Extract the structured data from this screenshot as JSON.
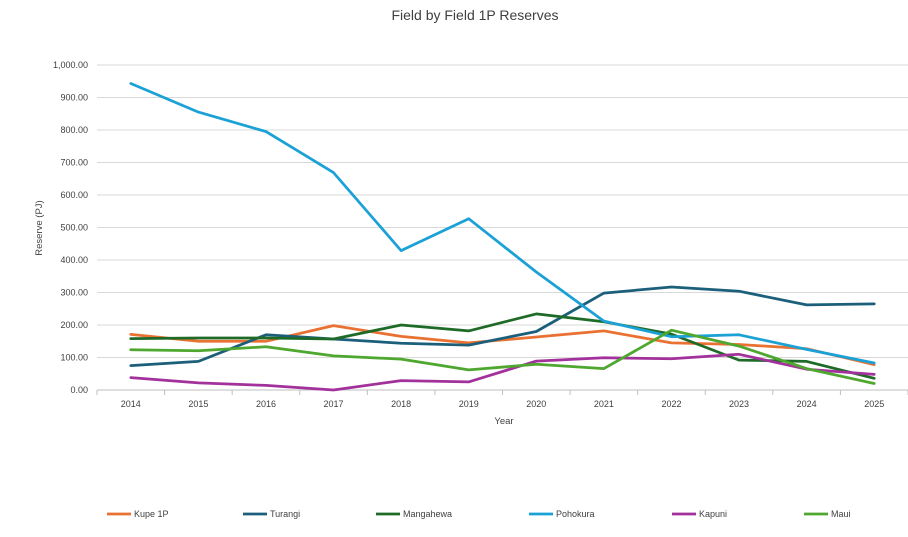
{
  "chart_data": {
    "type": "line",
    "title": "Field by Field 1P Reserves",
    "xlabel": "Year",
    "ylabel": "Reserve  (PJ)",
    "ylim": [
      0,
      1000
    ],
    "grid": true,
    "legend_position": "bottom",
    "y_ticks": [
      0,
      100,
      200,
      300,
      400,
      500,
      600,
      700,
      800,
      900,
      1000
    ],
    "y_tick_labels": [
      "0.00",
      "100.00",
      "200.00",
      "300.00",
      "400.00",
      "500.00",
      "600.00",
      "700.00",
      "800.00",
      "900.00",
      "1,000.00"
    ],
    "x": [
      "2014",
      "2015",
      "2016",
      "2017",
      "2018",
      "2019",
      "2020",
      "2021",
      "2022",
      "2023",
      "2024",
      "2025"
    ],
    "series": [
      {
        "name": "Kupe 1P",
        "color": "#E97132",
        "values": [
          171,
          150,
          150,
          198,
          165,
          145,
          163,
          182,
          145,
          140,
          127,
          78
        ]
      },
      {
        "name": "Turangi",
        "color": "#1B5F7A",
        "values": [
          75,
          88,
          170,
          157,
          144,
          138,
          180,
          298,
          317,
          304,
          262,
          265
        ]
      },
      {
        "name": "Mangahewa",
        "color": "#1D6B27",
        "values": [
          158,
          160,
          160,
          157,
          200,
          182,
          234,
          210,
          172,
          92,
          88,
          36
        ]
      },
      {
        "name": "Pohokura",
        "color": "#1AA1D6",
        "values": [
          943,
          855,
          795,
          669,
          429,
          527,
          363,
          212,
          164,
          170,
          125,
          83
        ]
      },
      {
        "name": "Kapuni",
        "color": "#A2319C",
        "values": [
          38,
          22,
          14,
          0,
          29,
          25,
          89,
          99,
          96,
          110,
          64,
          48
        ]
      },
      {
        "name": "Maui",
        "color": "#4EA72E",
        "values": [
          124,
          121,
          133,
          105,
          95,
          62,
          79,
          66,
          184,
          135,
          66,
          20
        ]
      }
    ]
  }
}
